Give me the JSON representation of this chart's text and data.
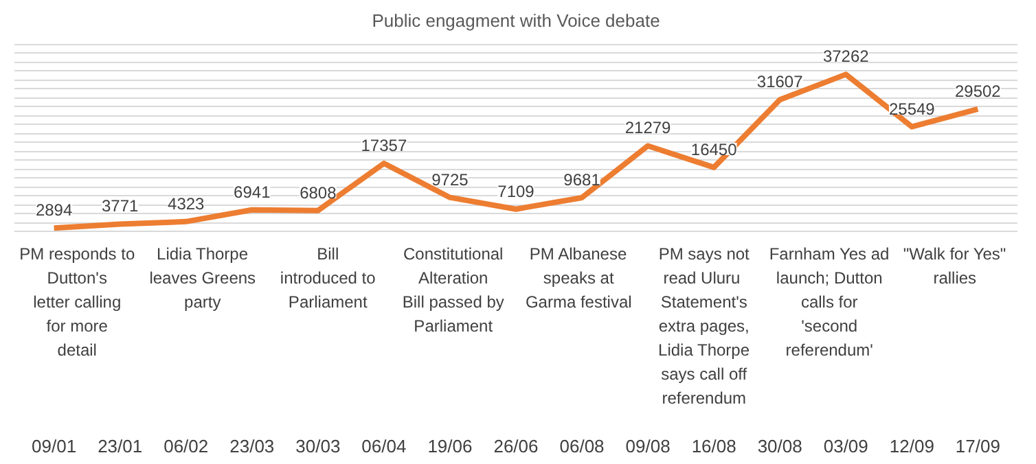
{
  "chart_data": {
    "type": "line",
    "title": "Public engagment with Voice debate",
    "categories": [
      "09/01",
      "23/01",
      "06/02",
      "23/03",
      "30/03",
      "06/04",
      "19/06",
      "26/06",
      "06/08",
      "09/08",
      "16/08",
      "30/08",
      "03/09",
      "12/09",
      "17/09"
    ],
    "series": [
      {
        "color": "#ed7d31",
        "values": [
          2894,
          3771,
          4323,
          6941,
          6808,
          17357,
          9725,
          7109,
          9681,
          21279,
          16450,
          31607,
          37262,
          25549,
          29502
        ]
      }
    ],
    "data_labels": true,
    "grid": "y",
    "tick_labels": "x",
    "marker": "none",
    "line_style": "solid",
    "annotations": [
      "PM responds to Dutton's letter calling for more detail",
      "Lidia Thorpe leaves Greens party",
      "Bill introduced to Parliament",
      "Constitutional Alteration Bill passed by Parliament",
      "PM Albanese speaks at Garma festival",
      "PM says not read  Uluru Statement's extra pages, Lidia Thorpe says call off referendum",
      "Farnham Yes ad launch; Dutton calls for 'second referendum'",
      "\"Walk for Yes\" rallies"
    ]
  }
}
